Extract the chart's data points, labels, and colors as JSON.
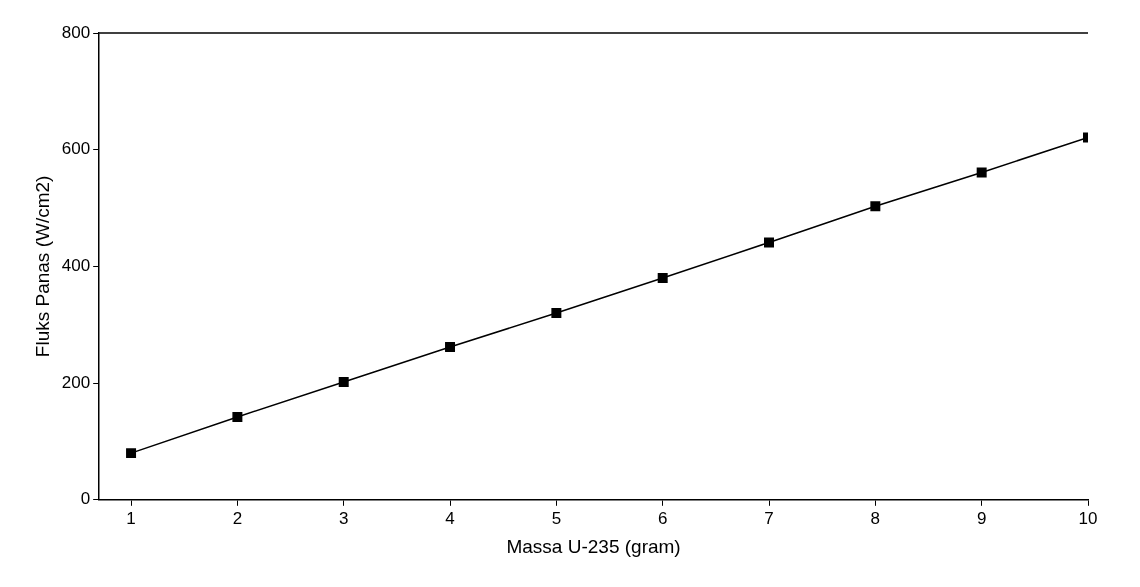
{
  "chart_data": {
    "type": "line",
    "xlabel": "Massa U-235 (gram)",
    "ylabel": "Fluks Panas (W/cm2)",
    "x": [
      1,
      2,
      3,
      4,
      5,
      6,
      7,
      8,
      9,
      10
    ],
    "series": [
      {
        "color": "#000000",
        "values": [
          80,
          142,
          202,
          262,
          320,
          380,
          441,
          503,
          561,
          621
        ]
      }
    ],
    "xlim": [
      0.7,
      10
    ],
    "xticks": [
      1,
      2,
      3,
      4,
      5,
      6,
      7,
      8,
      9,
      10
    ],
    "ylim": [
      0,
      800
    ],
    "yticks": [
      0,
      200,
      400,
      600,
      800
    ],
    "grid": false,
    "legend": false,
    "marker": "square",
    "line_style": "solid"
  }
}
